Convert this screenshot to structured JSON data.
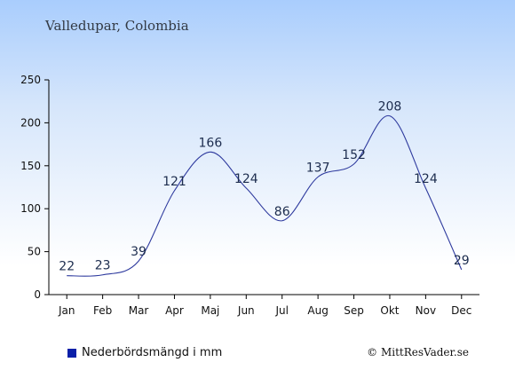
{
  "chart_data": {
    "type": "line",
    "title": "Valledupar, Colombia",
    "categories": [
      "Jan",
      "Feb",
      "Mar",
      "Apr",
      "Maj",
      "Jun",
      "Jul",
      "Aug",
      "Sep",
      "Okt",
      "Nov",
      "Dec"
    ],
    "series": [
      {
        "name": "Nederbördsmängd i mm",
        "values": [
          22,
          23,
          39,
          121,
          166,
          124,
          86,
          137,
          152,
          208,
          124,
          29
        ]
      }
    ],
    "yticks": [
      0,
      50,
      100,
      150,
      200,
      250
    ],
    "ylim": [
      0,
      250
    ],
    "grid": false,
    "legend": "bottom-left",
    "line_color": "#2e3a9e",
    "legend_color": "#0a1fa8"
  },
  "footer": {
    "copyright": "© MittResVader.se"
  }
}
